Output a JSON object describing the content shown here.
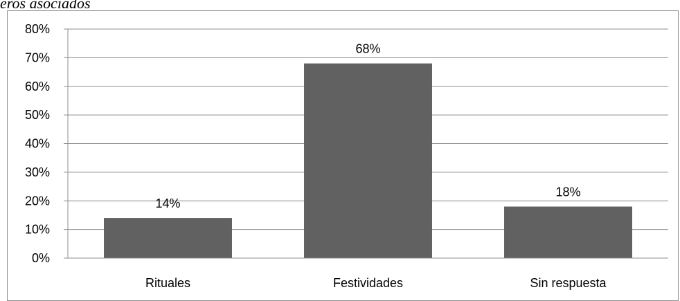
{
  "caption": "eros asociados",
  "chart_data": {
    "type": "bar",
    "categories": [
      "Rituales",
      "Festividades",
      "Sin respuesta"
    ],
    "values": [
      14,
      68,
      18
    ],
    "data_labels": [
      "14%",
      "68%",
      "18%"
    ],
    "ylim": [
      0,
      80
    ],
    "yticks": [
      "0%",
      "10%",
      "20%",
      "30%",
      "40%",
      "50%",
      "60%",
      "70%",
      "80%"
    ],
    "grid": true,
    "bar_color": "#616161",
    "title": "",
    "xlabel": "",
    "ylabel": ""
  }
}
